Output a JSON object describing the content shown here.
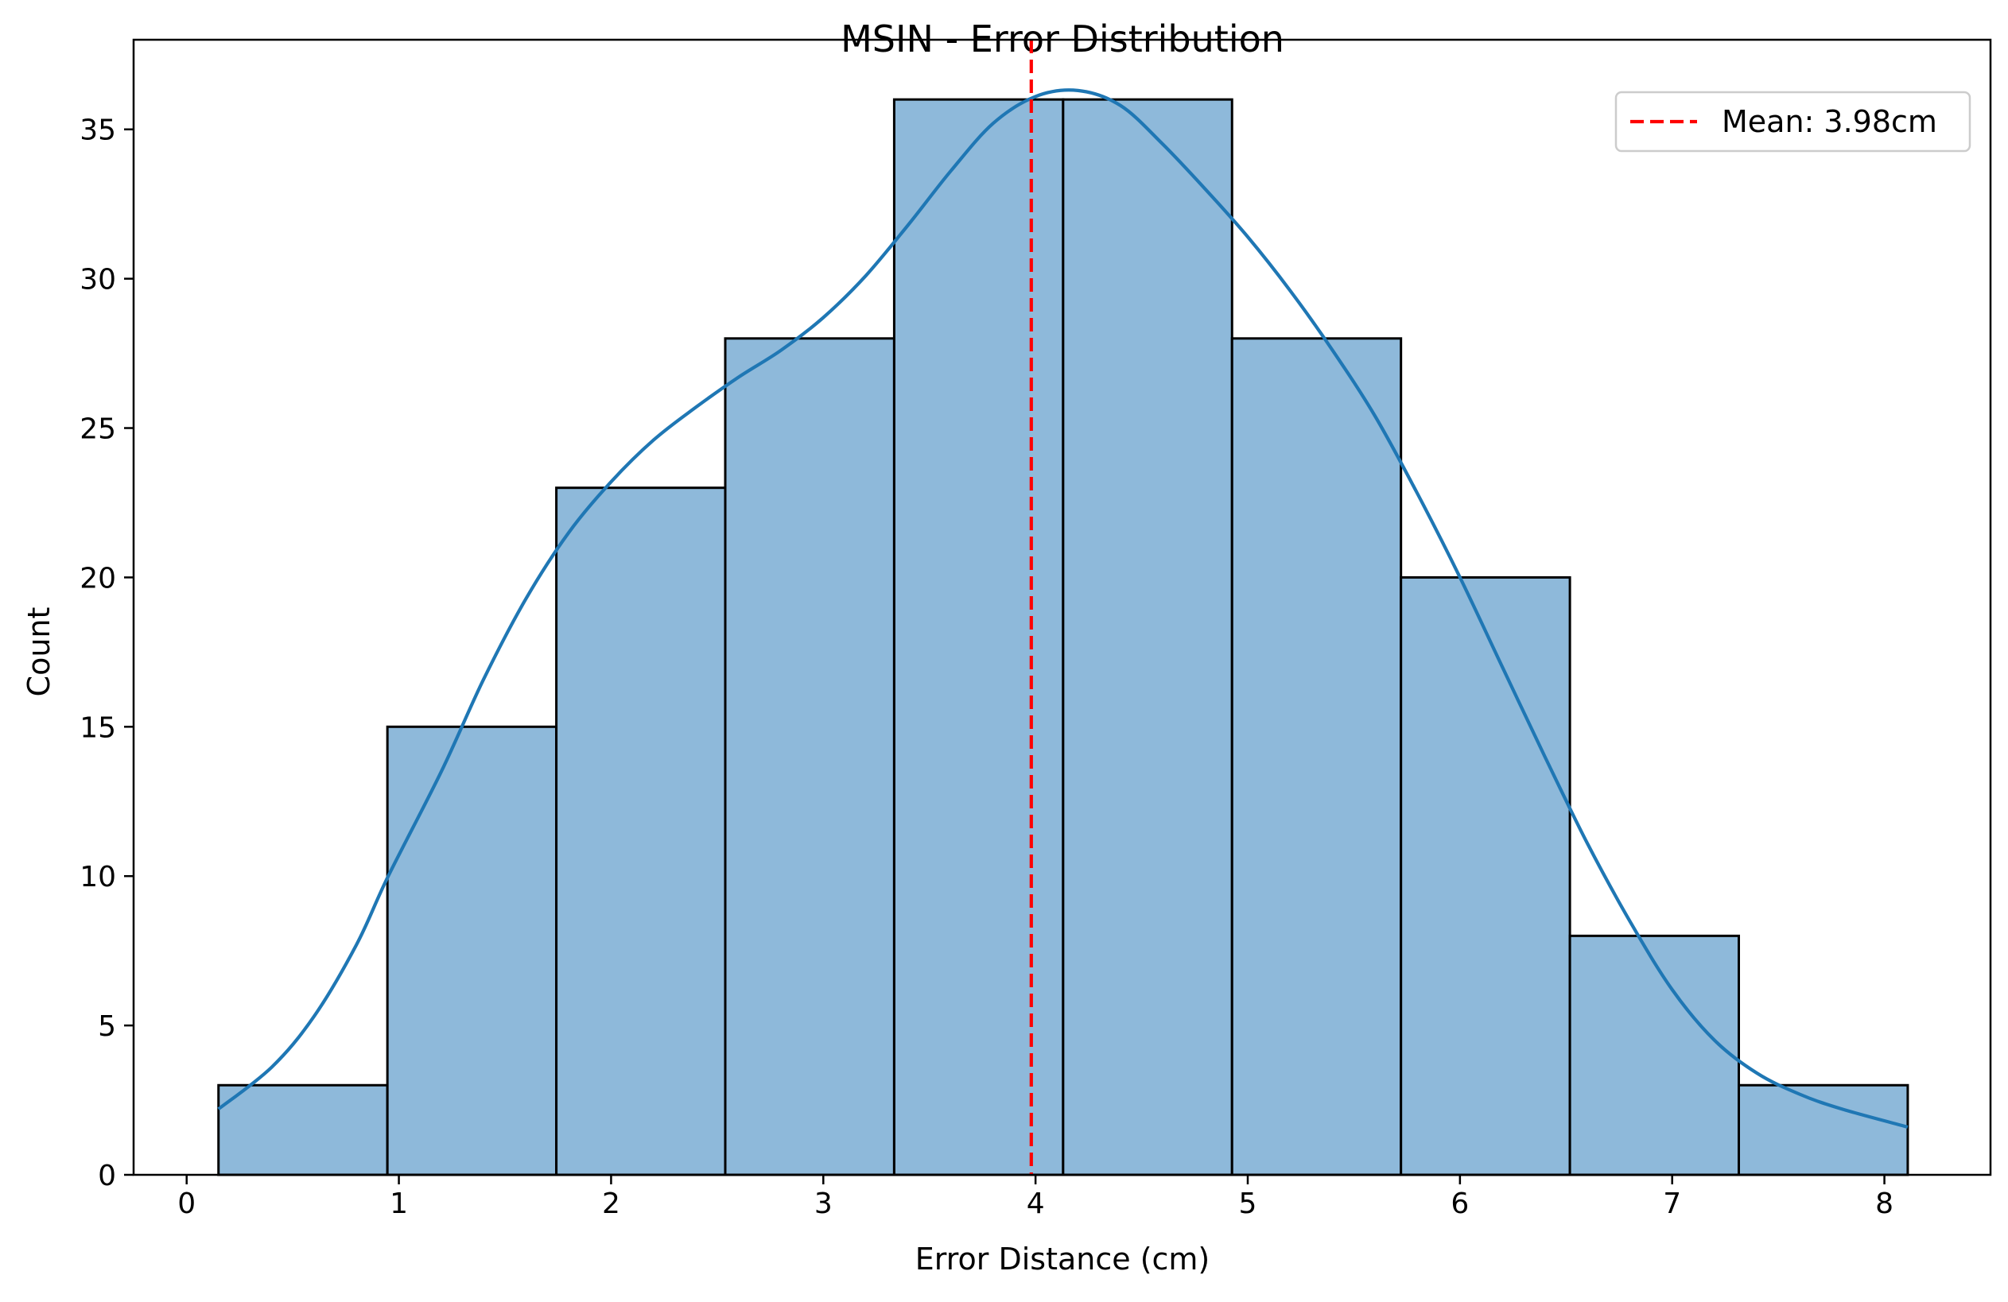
{
  "chart_data": {
    "type": "bar",
    "subtype": "histogram-with-kde",
    "title": "MSIN - Error Distribution",
    "xlabel": "Error Distance (cm)",
    "ylabel": "Count",
    "xlim": [
      -0.25,
      8.5
    ],
    "ylim": [
      0,
      38
    ],
    "xticks": [
      0,
      1,
      2,
      3,
      4,
      5,
      6,
      7,
      8
    ],
    "yticks": [
      0,
      5,
      10,
      15,
      20,
      25,
      30,
      35
    ],
    "bin_edges": [
      0.15,
      0.946,
      1.742,
      2.538,
      3.334,
      4.13,
      4.926,
      5.722,
      6.518,
      7.314,
      8.11
    ],
    "counts": [
      3,
      15,
      23,
      28,
      36,
      36,
      28,
      20,
      8,
      3
    ],
    "bar_color": "#8eb9da",
    "bar_edge_color": "#000000",
    "kde": {
      "color": "#1f77b4",
      "x": [
        0.15,
        0.4,
        0.6,
        0.8,
        0.95,
        1.2,
        1.4,
        1.6,
        1.8,
        2.0,
        2.2,
        2.4,
        2.6,
        2.8,
        3.0,
        3.2,
        3.4,
        3.6,
        3.8,
        4.0,
        4.2,
        4.4,
        4.6,
        4.8,
        5.0,
        5.2,
        5.4,
        5.6,
        5.8,
        6.0,
        6.2,
        6.4,
        6.6,
        6.8,
        7.0,
        7.2,
        7.4,
        7.6,
        7.8,
        8.11
      ],
      "y": [
        2.2,
        3.6,
        5.3,
        7.7,
        10.0,
        13.5,
        16.6,
        19.3,
        21.5,
        23.2,
        24.6,
        25.7,
        26.7,
        27.6,
        28.7,
        30.1,
        31.8,
        33.6,
        35.2,
        36.1,
        36.3,
        35.8,
        34.5,
        33.0,
        31.4,
        29.6,
        27.6,
        25.4,
        22.8,
        20.0,
        17.0,
        14.0,
        11.1,
        8.5,
        6.2,
        4.5,
        3.4,
        2.7,
        2.2,
        1.6
      ]
    },
    "mean_line": {
      "x": 3.98,
      "color": "#ff0000",
      "label": "Mean: 3.98cm"
    },
    "legend_position": "upper right",
    "grid": false
  }
}
